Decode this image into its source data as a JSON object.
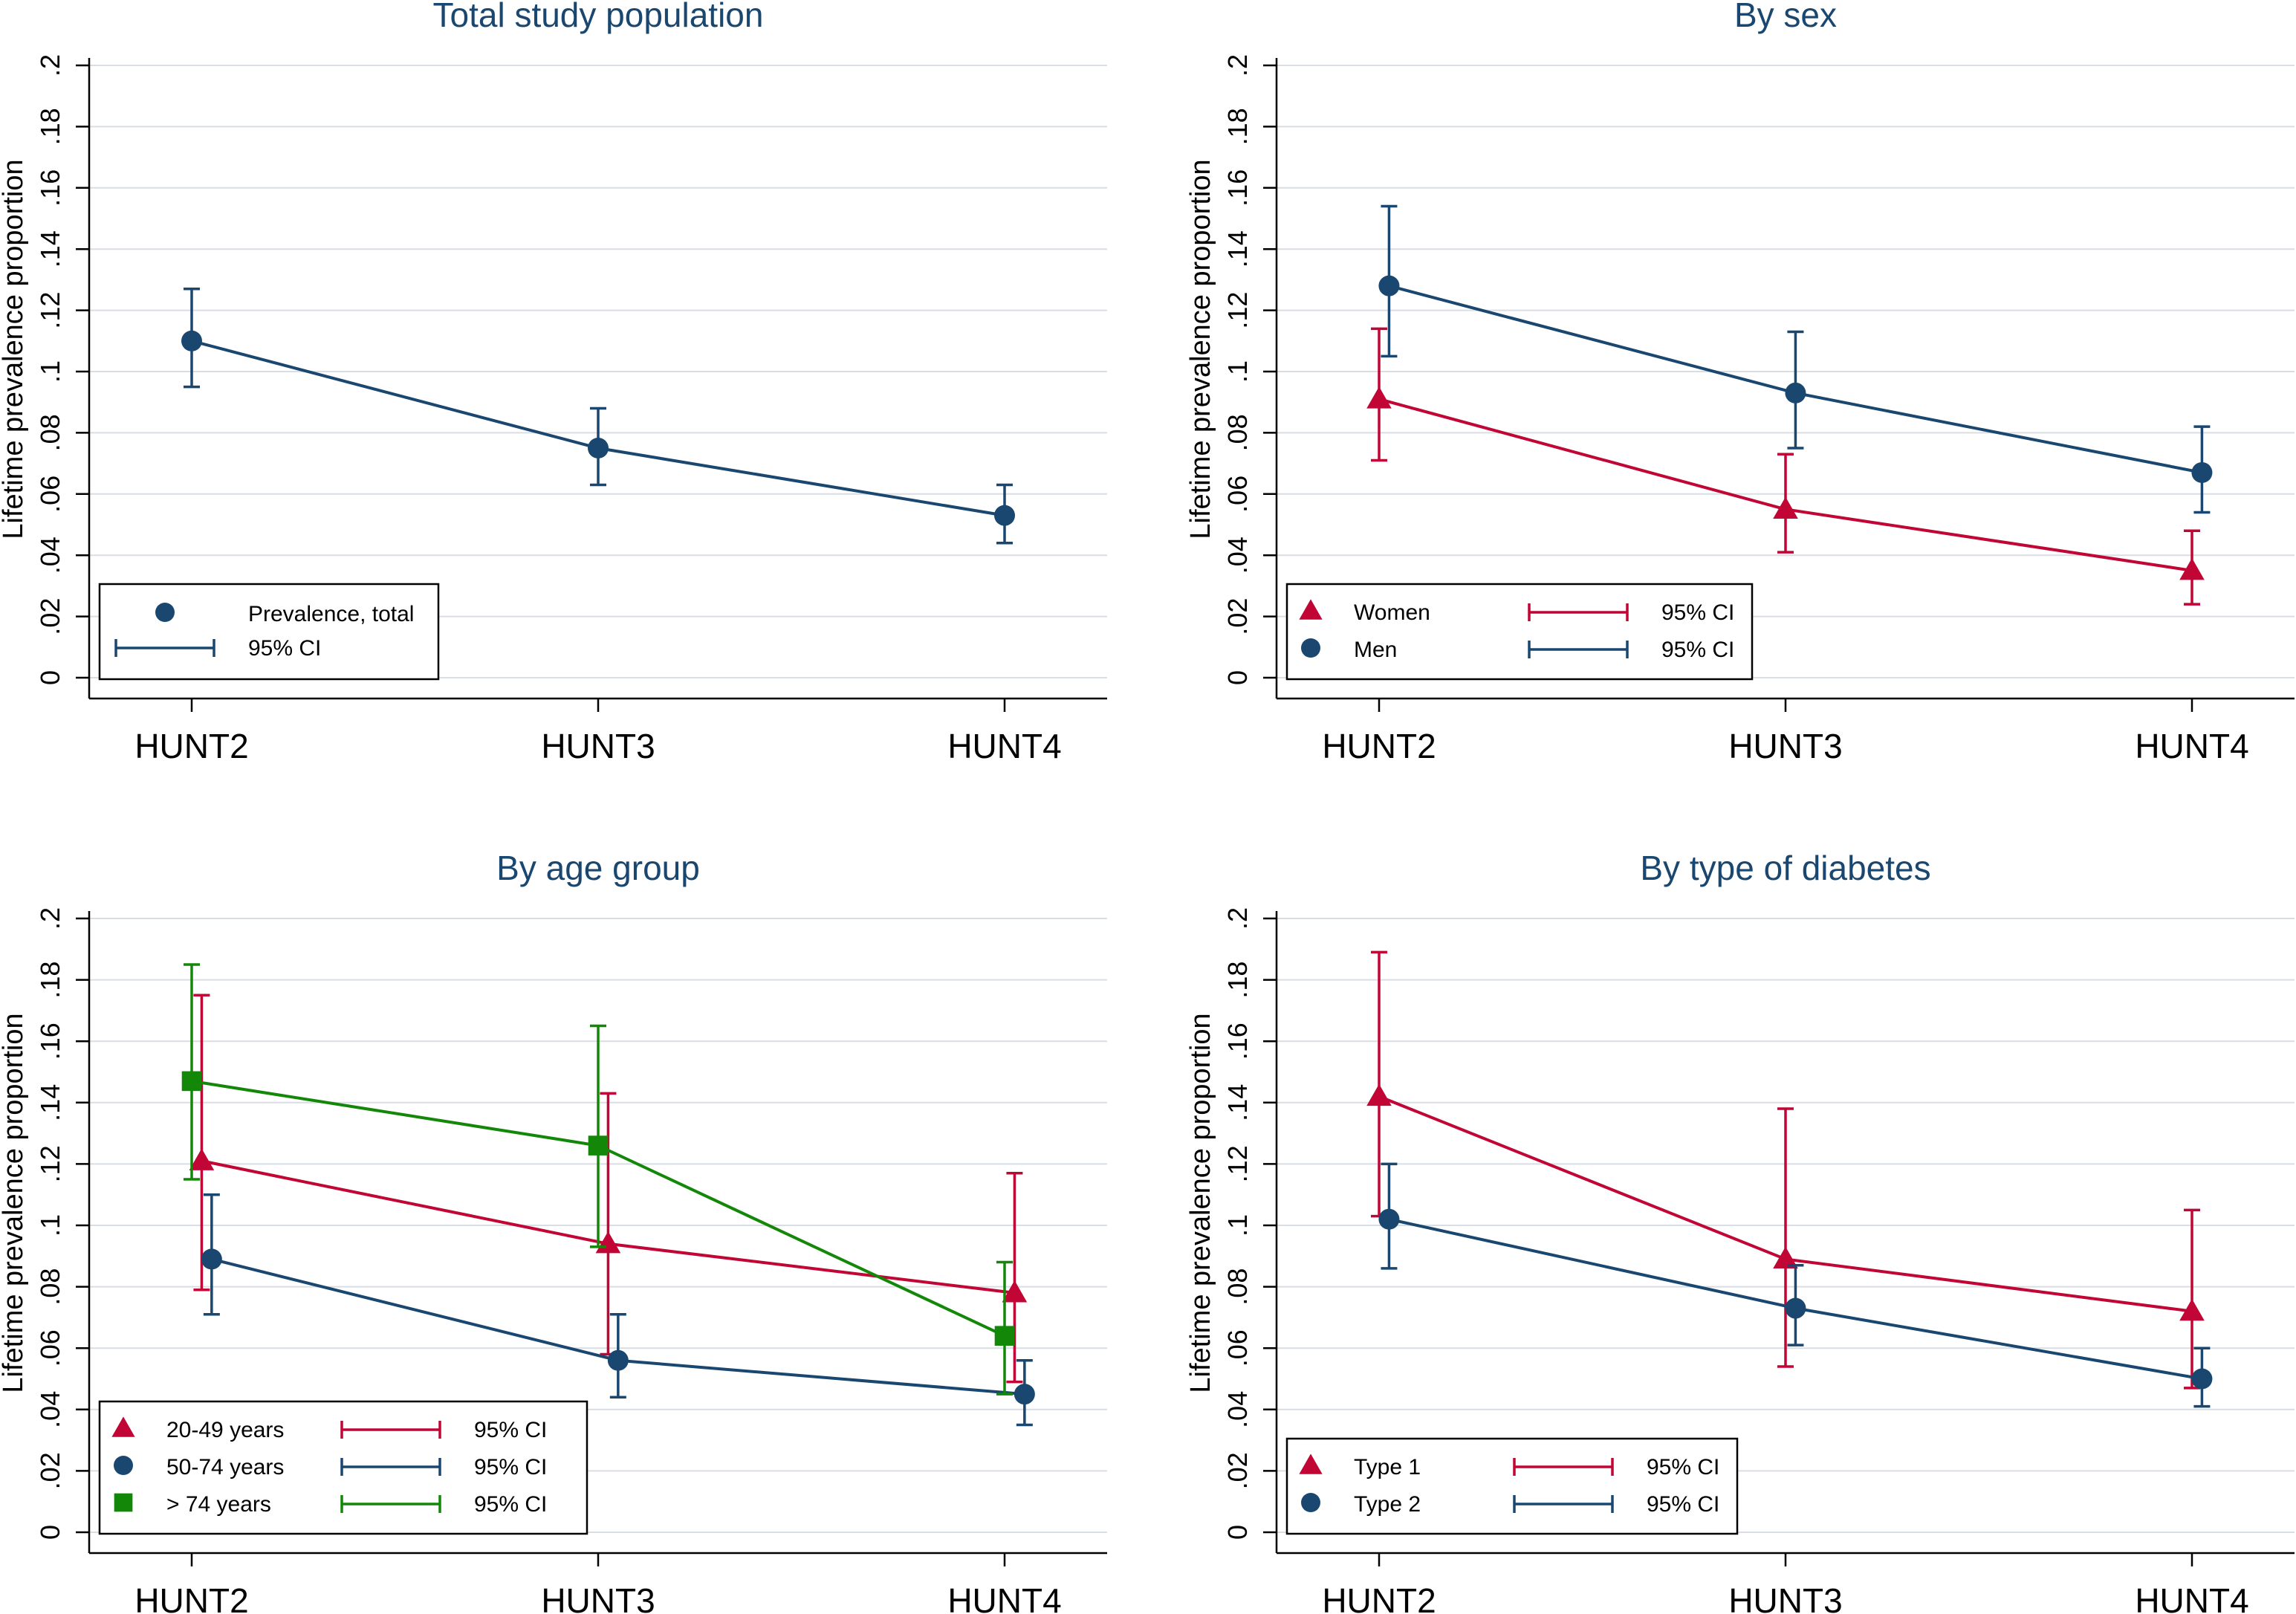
{
  "colors": {
    "navy": "#1a476f",
    "red": "#c10534",
    "green": "#138808",
    "grid": "#d9dee4",
    "axis": "#000000",
    "title": "#1a476f"
  },
  "chart_data": [
    {
      "type": "line",
      "title": "Total study population",
      "ylabel": "Lifetime prevalence proportion",
      "xlabel": "",
      "categories": [
        "HUNT2",
        "HUNT3",
        "HUNT4"
      ],
      "ylim": [
        0,
        0.2
      ],
      "yticks": [
        0,
        0.02,
        0.04,
        0.06,
        0.08,
        0.1,
        0.12,
        0.14,
        0.16,
        0.18,
        0.2
      ],
      "ytick_labels": [
        "0",
        ".02",
        ".04",
        ".06",
        ".08",
        ".1",
        ".12",
        ".14",
        ".16",
        ".18",
        ".2"
      ],
      "legend_position": "bottom-left",
      "legend_columns": 1,
      "series": [
        {
          "name": "Prevalence, total",
          "ci_label": "95% CI",
          "color": "#1a476f",
          "marker": "circle",
          "offset": 0,
          "values": [
            0.11,
            0.075,
            0.053
          ],
          "ci_low": [
            0.095,
            0.063,
            0.044
          ],
          "ci_high": [
            0.127,
            0.088,
            0.063
          ]
        }
      ]
    },
    {
      "type": "line",
      "title": "By sex",
      "ylabel": "Lifetime prevalence proportion",
      "xlabel": "",
      "categories": [
        "HUNT2",
        "HUNT3",
        "HUNT4"
      ],
      "ylim": [
        0,
        0.2
      ],
      "yticks": [
        0,
        0.02,
        0.04,
        0.06,
        0.08,
        0.1,
        0.12,
        0.14,
        0.16,
        0.18,
        0.2
      ],
      "ytick_labels": [
        "0",
        ".02",
        ".04",
        ".06",
        ".08",
        ".1",
        ".12",
        ".14",
        ".16",
        ".18",
        ".2"
      ],
      "legend_position": "bottom-left",
      "legend_columns": 2,
      "series": [
        {
          "name": "Women",
          "ci_label": "95% CI",
          "color": "#c10534",
          "marker": "triangle",
          "offset": 0,
          "values": [
            0.091,
            0.055,
            0.035
          ],
          "ci_low": [
            0.071,
            0.041,
            0.024
          ],
          "ci_high": [
            0.114,
            0.073,
            0.048
          ]
        },
        {
          "name": "Men",
          "ci_label": "95% CI",
          "color": "#1a476f",
          "marker": "circle",
          "offset": 0.05,
          "values": [
            0.128,
            0.093,
            0.067
          ],
          "ci_low": [
            0.105,
            0.075,
            0.054
          ],
          "ci_high": [
            0.154,
            0.113,
            0.082
          ]
        }
      ]
    },
    {
      "type": "line",
      "title": "By age group",
      "ylabel": "Lifetime prevalence proportion",
      "xlabel": "",
      "categories": [
        "HUNT2",
        "HUNT3",
        "HUNT4"
      ],
      "ylim": [
        0,
        0.2
      ],
      "yticks": [
        0,
        0.02,
        0.04,
        0.06,
        0.08,
        0.1,
        0.12,
        0.14,
        0.16,
        0.18,
        0.2
      ],
      "ytick_labels": [
        "0",
        ".02",
        ".04",
        ".06",
        ".08",
        ".1",
        ".12",
        ".14",
        ".16",
        ".18",
        ".2"
      ],
      "legend_position": "bottom-left",
      "legend_columns": 2,
      "series": [
        {
          "name": "20-49 years",
          "ci_label": "95% CI",
          "color": "#c10534",
          "marker": "triangle",
          "offset": 0.05,
          "values": [
            0.121,
            0.094,
            0.078
          ],
          "ci_low": [
            0.079,
            0.058,
            0.049
          ],
          "ci_high": [
            0.175,
            0.143,
            0.117
          ]
        },
        {
          "name": "50-74 years",
          "ci_label": "95% CI",
          "color": "#1a476f",
          "marker": "circle",
          "offset": 0.1,
          "values": [
            0.089,
            0.056,
            0.045
          ],
          "ci_low": [
            0.071,
            0.044,
            0.035
          ],
          "ci_high": [
            0.11,
            0.071,
            0.056
          ]
        },
        {
          "name": "> 74 years",
          "ci_label": "95% CI",
          "color": "#138808",
          "marker": "square",
          "offset": 0,
          "values": [
            0.147,
            0.126,
            0.064
          ],
          "ci_low": [
            0.115,
            0.093,
            0.045
          ],
          "ci_high": [
            0.185,
            0.165,
            0.088
          ]
        }
      ]
    },
    {
      "type": "line",
      "title": "By type of diabetes",
      "ylabel": "Lifetime prevalence proportion",
      "xlabel": "",
      "categories": [
        "HUNT2",
        "HUNT3",
        "HUNT4"
      ],
      "ylim": [
        0,
        0.2
      ],
      "yticks": [
        0,
        0.02,
        0.04,
        0.06,
        0.08,
        0.1,
        0.12,
        0.14,
        0.16,
        0.18,
        0.2
      ],
      "ytick_labels": [
        "0",
        ".02",
        ".04",
        ".06",
        ".08",
        ".1",
        ".12",
        ".14",
        ".16",
        ".18",
        ".2"
      ],
      "legend_position": "bottom-left",
      "legend_columns": 2,
      "series": [
        {
          "name": "Type 1",
          "ci_label": "95% CI",
          "color": "#c10534",
          "marker": "triangle",
          "offset": 0,
          "values": [
            0.142,
            0.089,
            0.072
          ],
          "ci_low": [
            0.103,
            0.054,
            0.047
          ],
          "ci_high": [
            0.189,
            0.138,
            0.105
          ]
        },
        {
          "name": "Type 2",
          "ci_label": "95% CI",
          "color": "#1a476f",
          "marker": "circle",
          "offset": 0.05,
          "values": [
            0.102,
            0.073,
            0.05
          ],
          "ci_low": [
            0.086,
            0.061,
            0.041
          ],
          "ci_high": [
            0.12,
            0.087,
            0.06
          ]
        }
      ]
    }
  ]
}
